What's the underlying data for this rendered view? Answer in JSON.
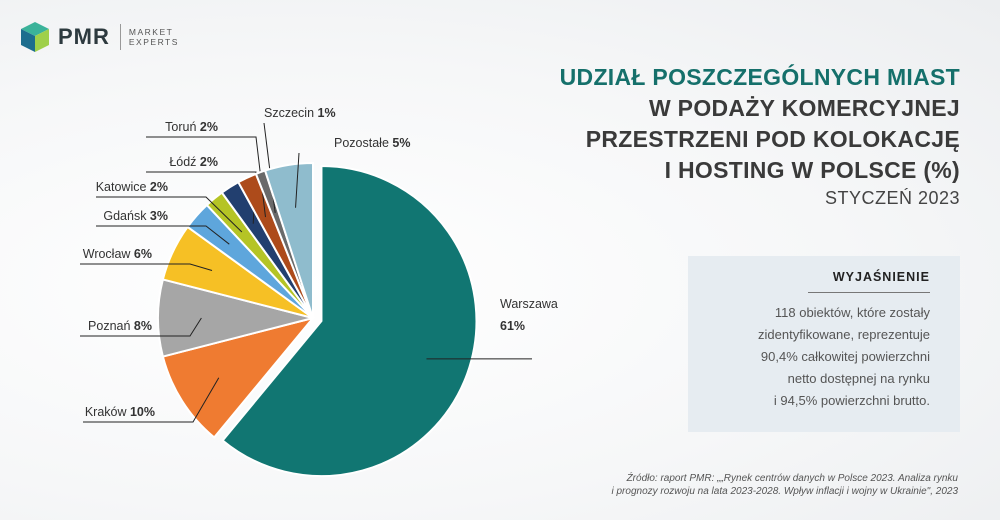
{
  "brand": {
    "name": "PMR",
    "tagline_1": "MARKET",
    "tagline_2": "EXPERTS"
  },
  "title": {
    "line1": "UDZIAŁ POSZCZEGÓLNYCH MIAST",
    "line2": "W PODAŻY KOMERCYJNEJ",
    "line3": "PRZESTRZENI POD KOLOKACJĘ",
    "line4": "I HOSTING W POLSCE (%)",
    "subtitle": "STYCZEŃ 2023"
  },
  "explanation": {
    "heading": "WYJAŚNIENIE",
    "line1": "118 obiektów, które zostały",
    "line2": "zidentyfikowane, reprezentuje",
    "line3": "90,4% całkowitej powierzchni",
    "line4": "netto dostępnej na rynku",
    "line5": "i 94,5% powierzchni brutto."
  },
  "source": {
    "line1": "Źródło: raport PMR: „„Rynek centrów danych w Polsce 2023. Analiza rynku",
    "line2": "i prognozy rozwoju na lata 2023-2028. Wpływ inflacji i wojny w Ukrainie\", 2023"
  },
  "chart_data": {
    "type": "pie",
    "unit": "%",
    "slices": [
      {
        "name": "Warszawa",
        "value": 61,
        "label": "61%",
        "color": "#117672"
      },
      {
        "name": "Kraków",
        "value": 10,
        "label": "10%",
        "color": "#ef7b31"
      },
      {
        "name": "Poznań",
        "value": 8,
        "label": "8%",
        "color": "#a6a6a6"
      },
      {
        "name": "Wrocław",
        "value": 6,
        "label": "6%",
        "color": "#f6c025"
      },
      {
        "name": "Gdańsk",
        "value": 3,
        "label": "3%",
        "color": "#5ea6dc"
      },
      {
        "name": "Katowice",
        "value": 2,
        "label": "2%",
        "color": "#b5c425"
      },
      {
        "name": "Łódź",
        "value": 2,
        "label": "2%",
        "color": "#223f6f"
      },
      {
        "name": "Toruń",
        "value": 2,
        "label": "2%",
        "color": "#ad4b1b"
      },
      {
        "name": "Szczecin",
        "value": 1,
        "label": "1%",
        "color": "#6a6a6a"
      },
      {
        "name": "Pozostałe",
        "value": 5,
        "label": "5%",
        "color": "#8fbccd"
      }
    ]
  }
}
